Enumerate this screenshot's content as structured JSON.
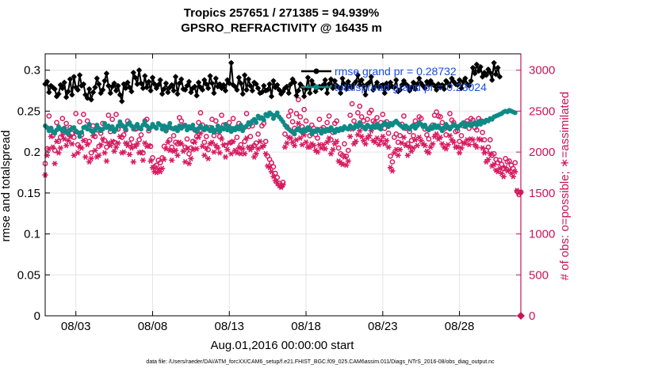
{
  "chart_data": {
    "type": "line",
    "title_line1": "Tropics 257651 / 271385 = 94.939%",
    "title_line2": "GPSRO_REFRACTIVITY @ 16435 m",
    "xlabel": "Aug.01,2016 00:00:00 start",
    "ylabel_left": "rmse and totalspread",
    "ylabel_right": "# of obs: o=possible; ∗=assimilated",
    "xlim": [
      1.0,
      32.0
    ],
    "ylim_left": [
      0,
      0.32
    ],
    "ylim_right": [
      0,
      3200
    ],
    "x_ticks": [
      {
        "x": 3,
        "label": "08/03"
      },
      {
        "x": 8,
        "label": "08/08"
      },
      {
        "x": 13,
        "label": "08/13"
      },
      {
        "x": 18,
        "label": "08/18"
      },
      {
        "x": 23,
        "label": "08/23"
      },
      {
        "x": 28,
        "label": "08/28"
      }
    ],
    "y_ticks_left": [
      {
        "v": 0,
        "label": "0"
      },
      {
        "v": 0.05,
        "label": "0.05"
      },
      {
        "v": 0.1,
        "label": "0.1"
      },
      {
        "v": 0.15,
        "label": "0.15"
      },
      {
        "v": 0.2,
        "label": "0.2"
      },
      {
        "v": 0.25,
        "label": "0.25"
      },
      {
        "v": 0.3,
        "label": "0.3"
      }
    ],
    "y_ticks_right": [
      {
        "v": 0,
        "label": "0"
      },
      {
        "v": 500,
        "label": "500"
      },
      {
        "v": 1000,
        "label": "1000"
      },
      {
        "v": 1500,
        "label": "1500"
      },
      {
        "v": 2000,
        "label": "2000"
      },
      {
        "v": 2500,
        "label": "2500"
      },
      {
        "v": 3000,
        "label": "3000"
      }
    ],
    "grid": true,
    "legend_position": "top-right",
    "series": [
      {
        "name": "rmse",
        "legend": "rmse grand pr = 0.28732",
        "color": "#000000",
        "marker": "star",
        "axis": "left",
        "x_start": 1.0,
        "x_step": 0.125,
        "values": [
          0.283,
          0.286,
          0.273,
          0.281,
          0.279,
          0.277,
          0.268,
          0.271,
          0.282,
          0.278,
          0.285,
          0.267,
          0.274,
          0.289,
          0.27,
          0.292,
          0.279,
          0.276,
          0.294,
          0.281,
          0.283,
          0.27,
          0.266,
          0.277,
          0.264,
          0.273,
          0.279,
          0.29,
          0.283,
          0.272,
          0.276,
          0.287,
          0.296,
          0.281,
          0.272,
          0.28,
          0.284,
          0.275,
          0.281,
          0.27,
          0.262,
          0.283,
          0.278,
          0.285,
          0.279,
          0.274,
          0.297,
          0.291,
          0.283,
          0.3,
          0.284,
          0.278,
          0.293,
          0.279,
          0.286,
          0.275,
          0.291,
          0.283,
          0.278,
          0.282,
          0.288,
          0.271,
          0.277,
          0.284,
          0.273,
          0.279,
          0.282,
          0.275,
          0.292,
          0.271,
          0.284,
          0.289,
          0.277,
          0.276,
          0.281,
          0.286,
          0.273,
          0.278,
          0.28,
          0.269,
          0.285,
          0.279,
          0.276,
          0.288,
          0.283,
          0.278,
          0.293,
          0.284,
          0.272,
          0.29,
          0.28,
          0.283,
          0.278,
          0.282,
          0.275,
          0.288,
          0.284,
          0.309,
          0.282,
          0.28,
          0.276,
          0.291,
          0.284,
          0.271,
          0.294,
          0.276,
          0.289,
          0.281,
          0.275,
          0.285,
          0.283,
          0.278,
          0.272,
          0.273,
          0.281,
          0.275,
          0.276,
          0.283,
          0.268,
          0.287,
          0.279,
          0.282,
          0.276,
          0.271,
          0.274,
          0.278,
          0.28,
          0.272,
          0.283,
          0.289,
          0.285,
          0.269,
          0.275,
          0.283,
          0.28,
          0.268,
          0.277,
          0.291,
          0.272,
          0.287,
          0.282,
          0.274,
          0.279,
          0.28,
          0.278,
          0.282,
          0.288,
          0.272,
          0.283,
          0.289,
          0.278,
          0.287,
          0.281,
          0.279,
          0.272,
          0.29,
          0.283,
          0.277,
          0.286,
          0.28,
          0.279,
          0.283,
          0.286,
          0.294,
          0.282,
          0.288,
          0.281,
          0.27,
          0.283,
          0.285,
          0.292,
          0.276,
          0.28,
          0.285,
          0.279,
          0.281,
          0.282,
          0.272,
          0.284,
          0.278,
          0.285,
          0.28,
          0.279,
          0.288,
          0.274,
          0.276,
          0.282,
          0.287,
          0.283,
          0.281,
          0.275,
          0.279,
          0.285,
          0.277,
          0.283,
          0.29,
          0.284,
          0.281,
          0.278,
          0.286,
          0.282,
          0.287,
          0.283,
          0.281,
          0.276,
          0.283,
          0.279,
          0.282,
          0.277,
          0.287,
          0.284,
          0.281,
          0.29,
          0.286,
          0.283,
          0.282,
          0.288,
          0.278,
          0.286,
          0.29,
          0.283,
          0.281,
          0.287,
          0.303,
          0.296,
          0.307,
          0.299,
          0.304,
          0.292,
          0.297,
          0.294,
          0.301,
          0.297,
          0.288,
          0.309,
          0.295,
          0.303,
          0.292
        ]
      },
      {
        "name": "totalspread",
        "legend": "totalspread grand pr = 0.23024",
        "color": "#0f8a86",
        "marker": "dot",
        "axis": "left",
        "x_start": 1.0,
        "x_step": 0.125,
        "values": [
          0.232,
          0.23,
          0.226,
          0.229,
          0.225,
          0.223,
          0.227,
          0.231,
          0.228,
          0.226,
          0.229,
          0.224,
          0.222,
          0.227,
          0.229,
          0.23,
          0.226,
          0.224,
          0.219,
          0.224,
          0.23,
          0.231,
          0.228,
          0.234,
          0.226,
          0.224,
          0.227,
          0.233,
          0.229,
          0.226,
          0.228,
          0.235,
          0.23,
          0.232,
          0.228,
          0.231,
          0.225,
          0.228,
          0.232,
          0.237,
          0.233,
          0.231,
          0.228,
          0.234,
          0.236,
          0.232,
          0.228,
          0.231,
          0.234,
          0.23,
          0.228,
          0.233,
          0.237,
          0.232,
          0.228,
          0.23,
          0.234,
          0.231,
          0.229,
          0.235,
          0.233,
          0.228,
          0.232,
          0.226,
          0.231,
          0.235,
          0.229,
          0.228,
          0.23,
          0.226,
          0.232,
          0.229,
          0.231,
          0.233,
          0.227,
          0.231,
          0.229,
          0.233,
          0.228,
          0.225,
          0.229,
          0.232,
          0.229,
          0.227,
          0.231,
          0.228,
          0.226,
          0.23,
          0.224,
          0.227,
          0.232,
          0.225,
          0.23,
          0.228,
          0.234,
          0.227,
          0.231,
          0.225,
          0.229,
          0.227,
          0.231,
          0.228,
          0.233,
          0.226,
          0.23,
          0.232,
          0.236,
          0.234,
          0.238,
          0.24,
          0.236,
          0.244,
          0.241,
          0.242,
          0.239,
          0.246,
          0.244,
          0.248,
          0.246,
          0.241,
          0.245,
          0.248,
          0.243,
          0.24,
          0.237,
          0.233,
          0.23,
          0.228,
          0.226,
          0.224,
          0.222,
          0.227,
          0.229,
          0.226,
          0.224,
          0.228,
          0.226,
          0.23,
          0.227,
          0.222,
          0.226,
          0.225,
          0.228,
          0.226,
          0.223,
          0.227,
          0.225,
          0.228,
          0.226,
          0.23,
          0.227,
          0.224,
          0.228,
          0.226,
          0.229,
          0.227,
          0.231,
          0.229,
          0.228,
          0.232,
          0.23,
          0.229,
          0.233,
          0.231,
          0.236,
          0.232,
          0.23,
          0.228,
          0.233,
          0.231,
          0.229,
          0.232,
          0.23,
          0.234,
          0.231,
          0.228,
          0.233,
          0.236,
          0.234,
          0.231,
          0.235,
          0.233,
          0.236,
          0.238,
          0.235,
          0.233,
          0.231,
          0.229,
          0.232,
          0.23,
          0.228,
          0.231,
          0.233,
          0.229,
          0.232,
          0.236,
          0.234,
          0.231,
          0.233,
          0.229,
          0.227,
          0.231,
          0.229,
          0.233,
          0.23,
          0.232,
          0.229,
          0.226,
          0.23,
          0.234,
          0.231,
          0.228,
          0.231,
          0.234,
          0.232,
          0.229,
          0.232,
          0.234,
          0.236,
          0.231,
          0.233,
          0.235,
          0.232,
          0.234,
          0.236,
          0.233,
          0.237,
          0.234,
          0.238,
          0.236,
          0.239,
          0.238,
          0.241,
          0.24,
          0.243,
          0.244,
          0.245,
          0.246,
          0.247,
          0.249,
          0.25,
          0.249,
          0.251,
          0.25,
          0.249,
          0.248
        ]
      },
      {
        "name": "possible",
        "color": "#d81b60",
        "marker": "circle",
        "axis": "right",
        "x_start": 1.0,
        "x_step": 0.125,
        "values": [
          1860,
          2040,
          2440,
          2290,
          2200,
          2020,
          2360,
          2130,
          2180,
          2410,
          2290,
          2350,
          2250,
          2300,
          2230,
          2180,
          2470,
          2090,
          2370,
          2210,
          2460,
          2140,
          2380,
          2130,
          1990,
          2320,
          2190,
          2270,
          2070,
          2230,
          2350,
          2140,
          2060,
          2450,
          2250,
          2400,
          2120,
          2460,
          2280,
          2320,
          2180,
          2210,
          2270,
          2380,
          2100,
          2160,
          2070,
          2280,
          2290,
          2150,
          2210,
          1990,
          2380,
          2400,
          2260,
          2070,
          1930,
          1820,
          1840,
          1900,
          1870,
          1930,
          2070,
          2260,
          2300,
          2150,
          2060,
          2200,
          2120,
          2100,
          2420,
          2380,
          2320,
          2060,
          2160,
          1980,
          2050,
          2130,
          2270,
          2190,
          2360,
          2480,
          2330,
          2120,
          2190,
          2030,
          2300,
          2400,
          2200,
          2380,
          2250,
          2190,
          2450,
          2330,
          2080,
          2280,
          2360,
          2120,
          2410,
          2280,
          2180,
          2350,
          2090,
          2300,
          2130,
          2470,
          2310,
          2190,
          2320,
          2080,
          2110,
          2220,
          2420,
          2320,
          2350,
          2130,
          1950,
          1910,
          1870,
          1820,
          1740,
          1690,
          1620,
          1580,
          1630,
          2220,
          2310,
          2440,
          2500,
          2370,
          2290,
          2470,
          2640,
          2430,
          2310,
          2520,
          2380,
          2290,
          2200,
          2330,
          2290,
          2210,
          2170,
          2400,
          2280,
          2300,
          2260,
          2360,
          2440,
          2150,
          2240,
          2350,
          2380,
          2050,
          1980,
          1960,
          2100,
          1950,
          2020,
          2450,
          2590,
          2380,
          2320,
          2480,
          2560,
          2430,
          2380,
          2300,
          2400,
          2480,
          2510,
          2380,
          2360,
          2420,
          2300,
          2360,
          2460,
          2290,
          2370,
          2230,
          1950,
          1880,
          2180,
          2220,
          2120,
          2200,
          2340,
          2440,
          2290,
          2100,
          2250,
          2140,
          2200,
          2380,
          2340,
          2430,
          2410,
          2320,
          2280,
          2210,
          2160,
          2290,
          2330,
          2450,
          2490,
          2440,
          2430,
          2360,
          2280,
          2210,
          2300,
          2470,
          2390,
          2360,
          2250,
          2260,
          2130,
          2200,
          2320,
          2350,
          2380,
          2290,
          2410,
          2390,
          2300,
          2270,
          2410,
          2380,
          2240,
          2150,
          2020,
          2060,
          2150,
          1960,
          1980,
          1910,
          1870,
          1900,
          1850,
          1800,
          1920,
          1880,
          1890,
          1840,
          1800,
          1870,
          1520,
          1480,
          1510,
          1470
        ]
      },
      {
        "name": "assimilated",
        "color": "#d81b60",
        "marker": "asterisk",
        "axis": "right",
        "x_start": 1.0,
        "x_step": 0.125,
        "values": [
          1720,
          1960,
          2040,
          2190,
          2060,
          1860,
          2130,
          1990,
          2050,
          2210,
          2160,
          2080,
          2140,
          2190,
          2100,
          1960,
          2240,
          1990,
          2060,
          2050,
          2140,
          1940,
          2090,
          1880,
          1920,
          2200,
          2020,
          1940,
          1960,
          2090,
          2160,
          1990,
          1890,
          2110,
          2080,
          2130,
          2010,
          2060,
          2110,
          2190,
          1990,
          2000,
          2110,
          2080,
          1970,
          2050,
          1880,
          2070,
          2100,
          1990,
          2000,
          1900,
          2110,
          2070,
          2080,
          1890,
          1810,
          1760,
          1750,
          1790,
          1760,
          1800,
          1910,
          2040,
          2120,
          2020,
          1900,
          2010,
          2020,
          1960,
          2120,
          2100,
          2010,
          1880,
          2040,
          1860,
          1920,
          2030,
          2120,
          2040,
          2180,
          2230,
          2070,
          1960,
          2050,
          1920,
          2100,
          2120,
          2000,
          2080,
          2050,
          1990,
          2160,
          2090,
          1940,
          2030,
          2110,
          1980,
          2130,
          2020,
          1990,
          2050,
          1980,
          2040,
          1980,
          2170,
          2060,
          2030,
          2060,
          1940,
          1980,
          2040,
          2130,
          2060,
          2080,
          1980,
          1830,
          1810,
          1760,
          1700,
          1650,
          1620,
          1590,
          1570,
          1600,
          2060,
          2110,
          2180,
          2170,
          2120,
          2080,
          2150,
          2350,
          2170,
          2090,
          2210,
          2120,
          2060,
          2060,
          2100,
          2080,
          2020,
          2000,
          2090,
          2050,
          2090,
          2040,
          2120,
          2170,
          1980,
          2030,
          2100,
          2130,
          1890,
          1870,
          1850,
          1940,
          1840,
          1890,
          2190,
          2280,
          2100,
          2130,
          2210,
          2260,
          2190,
          2140,
          2100,
          2170,
          2200,
          2260,
          2140,
          2120,
          2170,
          2090,
          2140,
          2190,
          2100,
          2140,
          2060,
          1810,
          1770,
          1990,
          2030,
          1960,
          2030,
          2110,
          2180,
          2080,
          1960,
          2060,
          2010,
          2050,
          2150,
          2080,
          2180,
          2140,
          2100,
          2080,
          2010,
          1990,
          2060,
          2100,
          2190,
          2220,
          2160,
          2180,
          2100,
          2060,
          2040,
          2090,
          2200,
          2150,
          2120,
          2060,
          2060,
          1990,
          2050,
          2110,
          2110,
          2150,
          2090,
          2160,
          2150,
          2090,
          2060,
          2160,
          2150,
          2050,
          1990,
          1880,
          1910,
          1980,
          1830,
          1850,
          1780,
          1760,
          1800,
          1740,
          1700,
          1810,
          1770,
          1780,
          1740,
          1700,
          1760,
          1530,
          1500,
          1510,
          1460
        ]
      }
    ],
    "footer": "data file: /Users/raeder/DAI/ATM_forcXX/CAM6_setup/f.e21.FHIST_BGC.f09_025.CAM6assim.011/Diags_NTrS_2016-08/obs_diag_output.nc"
  }
}
